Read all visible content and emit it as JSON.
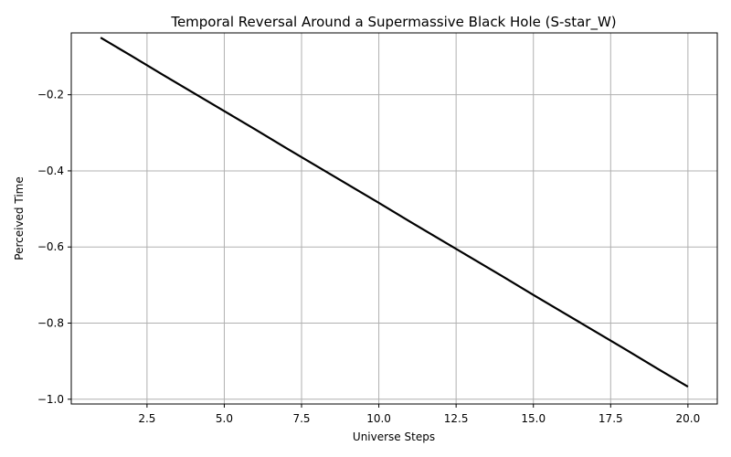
{
  "chart_data": {
    "type": "line",
    "title": "Temporal Reversal Around a Supermassive Black Hole (S-star_W)",
    "xlabel": "Universe Steps",
    "ylabel": "Perceived Time",
    "xlim": [
      0.05,
      20.95
    ],
    "ylim": [
      -1.0125,
      -0.0375
    ],
    "grid": true,
    "x_ticks": [
      2.5,
      5.0,
      7.5,
      10.0,
      12.5,
      15.0,
      17.5,
      20.0
    ],
    "x_tick_labels": [
      "2.5",
      "5.0",
      "7.5",
      "10.0",
      "12.5",
      "15.0",
      "17.5",
      "20.0"
    ],
    "y_ticks": [
      -0.2,
      -0.4,
      -0.6,
      -0.8,
      -1.0
    ],
    "y_tick_labels": [
      "−0.2",
      "−0.4",
      "−0.6",
      "−0.8",
      "−1.0"
    ],
    "series": [
      {
        "color": "#000000",
        "x": [
          1,
          2,
          3,
          4,
          5,
          6,
          7,
          8,
          9,
          10,
          11,
          12,
          13,
          14,
          15,
          16,
          17,
          18,
          19,
          20
        ],
        "y": [
          -0.05,
          -0.098,
          -0.147,
          -0.195,
          -0.243,
          -0.291,
          -0.34,
          -0.388,
          -0.436,
          -0.484,
          -0.533,
          -0.581,
          -0.629,
          -0.677,
          -0.726,
          -0.774,
          -0.822,
          -0.87,
          -0.919,
          -0.967
        ]
      }
    ]
  }
}
